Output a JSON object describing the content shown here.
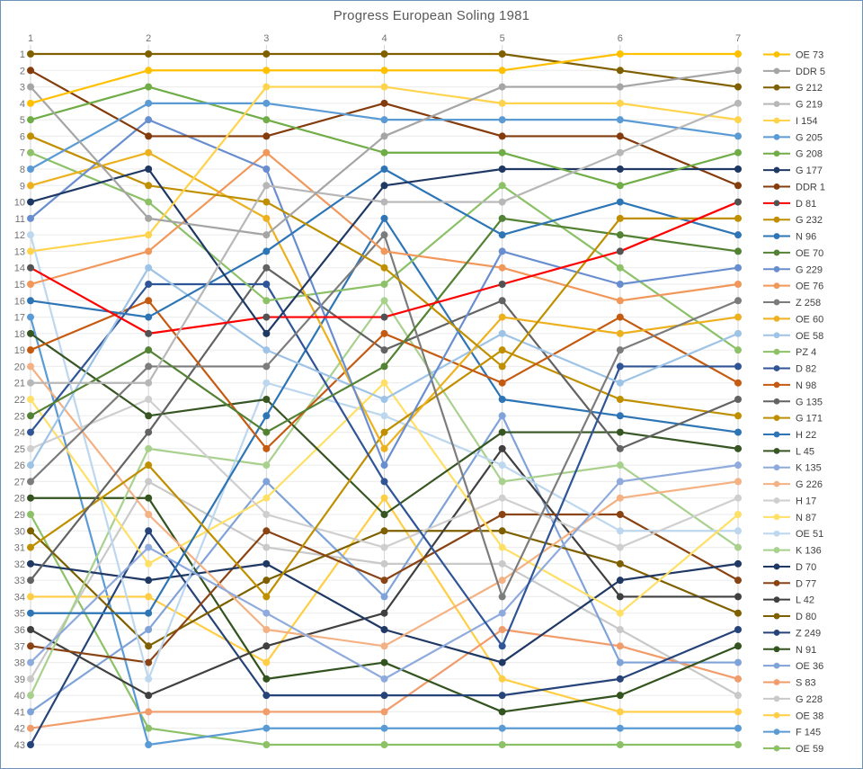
{
  "title": "Progress European Soling 1981",
  "axes": {
    "x_ticks": [
      "1",
      "2",
      "3",
      "4",
      "5",
      "6",
      "7"
    ],
    "y_ticks": [
      "1",
      "2",
      "3",
      "4",
      "5",
      "6",
      "7",
      "8",
      "9",
      "10",
      "11",
      "12",
      "13",
      "14",
      "15",
      "16",
      "17",
      "18",
      "19",
      "20",
      "21",
      "22",
      "23",
      "24",
      "25",
      "26",
      "27",
      "28",
      "29",
      "30",
      "31",
      "32",
      "33",
      "34",
      "35",
      "36",
      "37",
      "38",
      "39",
      "40",
      "41",
      "42",
      "43"
    ]
  },
  "palette": {
    "grid_horizontal": "#ebebeb",
    "grid_vertical": "#d6d6d6",
    "axis_text": "#737373",
    "title_text": "#595959",
    "legend_text": "#404040",
    "frame_border": "#6e93b8",
    "highlight_red": "#ff0000"
  },
  "chart_data": {
    "type": "line",
    "subtype": "bump-rank-chart",
    "title": "Progress European Soling 1981",
    "xlabel": "",
    "ylabel": "",
    "x": [
      1,
      2,
      3,
      4,
      5,
      6,
      7
    ],
    "y_axis": {
      "min": 1,
      "max": 43,
      "step": 1,
      "inverted": true
    },
    "grid": true,
    "legend_position": "right",
    "marker_style": "circle",
    "series": [
      {
        "name": "OE 73",
        "color": "#FFC000",
        "ranks": [
          4,
          2,
          2,
          2,
          2,
          1,
          1
        ]
      },
      {
        "name": "DDR 5",
        "color": "#A5A5A5",
        "ranks": [
          3,
          11,
          12,
          6,
          3,
          3,
          2
        ]
      },
      {
        "name": "G 212",
        "color": "#7F6000",
        "ranks": [
          1,
          1,
          1,
          1,
          1,
          2,
          3
        ]
      },
      {
        "name": "G 219",
        "color": "#B7B7B7",
        "ranks": [
          21,
          21,
          9,
          10,
          10,
          7,
          4
        ]
      },
      {
        "name": "I 154",
        "color": "#FFD34D",
        "ranks": [
          13,
          12,
          3,
          3,
          4,
          4,
          5
        ]
      },
      {
        "name": "G 205",
        "color": "#5B9BD5",
        "ranks": [
          8,
          4,
          4,
          5,
          5,
          5,
          6
        ]
      },
      {
        "name": "G 208",
        "color": "#70AD47",
        "ranks": [
          5,
          3,
          5,
          7,
          7,
          9,
          7
        ]
      },
      {
        "name": "G 177",
        "color": "#1F3864",
        "ranks": [
          10,
          8,
          18,
          9,
          8,
          8,
          8
        ]
      },
      {
        "name": "DDR 1",
        "color": "#843C0C",
        "ranks": [
          2,
          6,
          6,
          4,
          6,
          6,
          9
        ]
      },
      {
        "name": "D 81",
        "color": "#FF0000",
        "marker_color": "#525252",
        "ranks": [
          14,
          18,
          17,
          17,
          15,
          13,
          10
        ]
      },
      {
        "name": "G 232",
        "color": "#BF8F00",
        "ranks": [
          6,
          9,
          10,
          14,
          20,
          11,
          11
        ]
      },
      {
        "name": "N 96",
        "color": "#2E75B6",
        "ranks": [
          16,
          17,
          13,
          8,
          12,
          10,
          12
        ]
      },
      {
        "name": "OE 70",
        "color": "#548235",
        "ranks": [
          23,
          19,
          24,
          20,
          11,
          12,
          13
        ]
      },
      {
        "name": "G 229",
        "color": "#698ED0",
        "ranks": [
          11,
          5,
          8,
          26,
          13,
          15,
          14
        ]
      },
      {
        "name": "OE 76",
        "color": "#F1975A",
        "ranks": [
          15,
          13,
          7,
          13,
          14,
          16,
          15
        ]
      },
      {
        "name": "Z 258",
        "color": "#7C7C7C",
        "ranks": [
          27,
          20,
          20,
          12,
          34,
          19,
          16
        ]
      },
      {
        "name": "OE 60",
        "color": "#EDB120",
        "ranks": [
          9,
          7,
          11,
          25,
          17,
          18,
          17
        ]
      },
      {
        "name": "OE 58",
        "color": "#9DC3E6",
        "ranks": [
          26,
          14,
          19,
          22,
          18,
          21,
          18
        ]
      },
      {
        "name": "PZ 4",
        "color": "#8CC168",
        "ranks": [
          7,
          10,
          16,
          15,
          9,
          14,
          19
        ]
      },
      {
        "name": "D 82",
        "color": "#2F5597",
        "ranks": [
          24,
          15,
          15,
          27,
          37,
          20,
          20
        ]
      },
      {
        "name": "N 98",
        "color": "#C55A11",
        "ranks": [
          19,
          16,
          25,
          18,
          21,
          17,
          21
        ]
      },
      {
        "name": "G 135",
        "color": "#636363",
        "ranks": [
          33,
          24,
          14,
          19,
          16,
          25,
          22
        ]
      },
      {
        "name": "G 171",
        "color": "#BF8F00",
        "ranks": [
          31,
          26,
          34,
          24,
          19,
          22,
          23
        ]
      },
      {
        "name": "H 22",
        "color": "#2E75B6",
        "ranks": [
          35,
          35,
          23,
          11,
          22,
          23,
          24
        ]
      },
      {
        "name": "L 45",
        "color": "#375623",
        "ranks": [
          18,
          23,
          22,
          29,
          24,
          24,
          25
        ]
      },
      {
        "name": "K 135",
        "color": "#8FAADC",
        "ranks": [
          38,
          31,
          35,
          39,
          35,
          27,
          26
        ]
      },
      {
        "name": "G 226",
        "color": "#F4B183",
        "ranks": [
          20,
          29,
          36,
          37,
          33,
          28,
          27
        ]
      },
      {
        "name": "H 17",
        "color": "#CFCFCF",
        "ranks": [
          25,
          22,
          29,
          31,
          28,
          31,
          28
        ]
      },
      {
        "name": "N 87",
        "color": "#FFE066",
        "ranks": [
          22,
          32,
          28,
          21,
          31,
          35,
          29
        ]
      },
      {
        "name": "OE 51",
        "color": "#BDD7EE",
        "ranks": [
          12,
          39,
          21,
          23,
          26,
          30,
          30
        ]
      },
      {
        "name": "K 136",
        "color": "#A9D18E",
        "ranks": [
          40,
          25,
          26,
          16,
          27,
          26,
          31
        ]
      },
      {
        "name": "D 70",
        "color": "#203864",
        "ranks": [
          32,
          33,
          32,
          36,
          38,
          33,
          32
        ]
      },
      {
        "name": "D 77",
        "color": "#8A4413",
        "ranks": [
          37,
          38,
          30,
          33,
          29,
          29,
          33
        ]
      },
      {
        "name": "L 42",
        "color": "#404040",
        "ranks": [
          36,
          40,
          37,
          35,
          25,
          34,
          34
        ]
      },
      {
        "name": "D 80",
        "color": "#7F6000",
        "ranks": [
          30,
          37,
          33,
          30,
          30,
          32,
          35
        ]
      },
      {
        "name": "Z 249",
        "color": "#26437A",
        "ranks": [
          43,
          30,
          40,
          40,
          40,
          39,
          36
        ]
      },
      {
        "name": "N 91",
        "color": "#33531F",
        "ranks": [
          28,
          28,
          39,
          38,
          41,
          40,
          37
        ]
      },
      {
        "name": "OE 36",
        "color": "#7FA3D8",
        "ranks": [
          41,
          36,
          27,
          34,
          23,
          38,
          38
        ]
      },
      {
        "name": "S 83",
        "color": "#F19C6B",
        "ranks": [
          42,
          41,
          41,
          41,
          36,
          37,
          39
        ]
      },
      {
        "name": "G 228",
        "color": "#C9C9C9",
        "ranks": [
          39,
          27,
          31,
          32,
          32,
          36,
          40
        ]
      },
      {
        "name": "OE 38",
        "color": "#FFCE45",
        "ranks": [
          34,
          34,
          38,
          28,
          39,
          41,
          41
        ]
      },
      {
        "name": "F 145",
        "color": "#5B9BD5",
        "ranks": [
          17,
          43,
          42,
          42,
          42,
          42,
          42
        ]
      },
      {
        "name": "OE 59",
        "color": "#8CC168",
        "ranks": [
          29,
          42,
          43,
          43,
          43,
          43,
          43
        ]
      }
    ]
  }
}
